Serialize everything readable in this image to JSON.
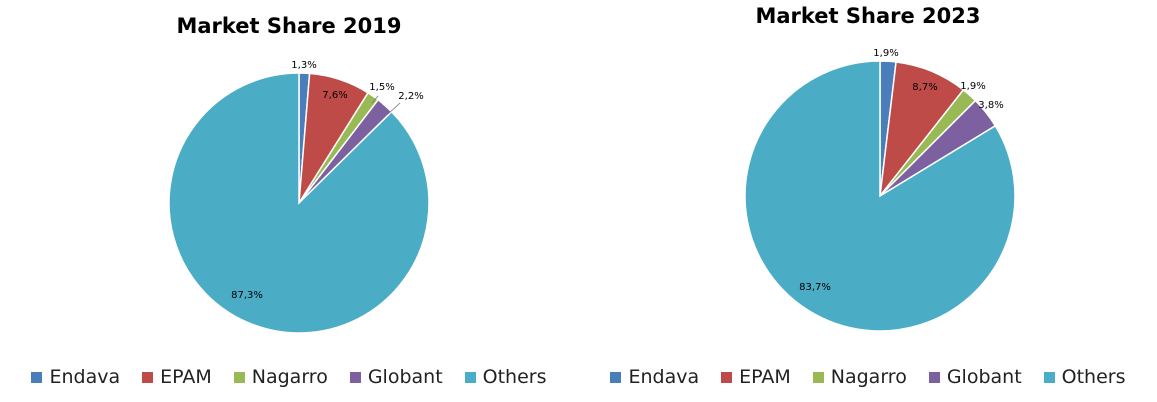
{
  "chart_data": [
    {
      "type": "pie",
      "title": "Market Share 2019",
      "categories": [
        "Endava",
        "EPAM",
        "Nagarro",
        "Globant",
        "Others"
      ],
      "values": [
        1.3,
        7.6,
        1.5,
        2.2,
        87.3
      ],
      "labels": [
        "1,3%",
        "7,6%",
        "1,5%",
        "2,2%",
        "87,3%"
      ],
      "legend_position": "bottom"
    },
    {
      "type": "pie",
      "title": "Market Share 2023",
      "categories": [
        "Endava",
        "EPAM",
        "Nagarro",
        "Globant",
        "Others"
      ],
      "values": [
        1.9,
        8.7,
        1.9,
        3.8,
        83.7
      ],
      "labels": [
        "1,9%",
        "8,7%",
        "1,9%",
        "3,8%",
        "83,7%"
      ],
      "legend_position": "bottom"
    }
  ],
  "colors": [
    "#4a7ebb",
    "#be4b48",
    "#98b954",
    "#7d60a0",
    "#4bacc6"
  ]
}
